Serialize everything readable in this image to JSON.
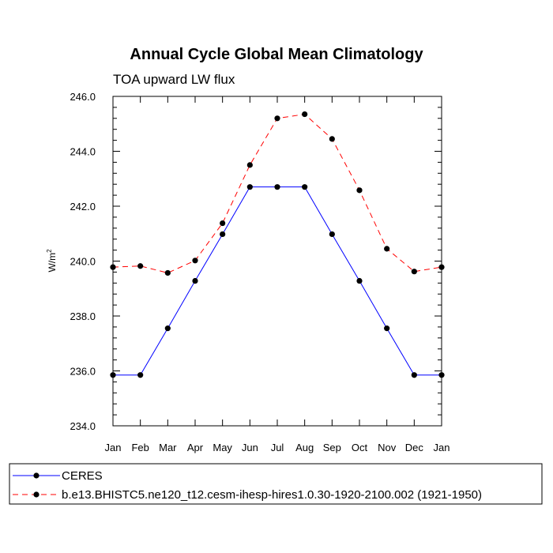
{
  "chart_data": {
    "type": "line",
    "title": "Annual Cycle Global Mean Climatology",
    "subtitle": "TOA upward LW flux",
    "xlabel": "",
    "ylabel": "W/m",
    "ylabel_superscript": "2",
    "categories": [
      "Jan",
      "Feb",
      "Mar",
      "Apr",
      "May",
      "Jun",
      "Jul",
      "Aug",
      "Sep",
      "Oct",
      "Nov",
      "Dec",
      "Jan"
    ],
    "ylim": [
      234.0,
      246.0
    ],
    "yticks": [
      234.0,
      236.0,
      238.0,
      240.0,
      242.0,
      244.0,
      246.0
    ],
    "ytick_labels": [
      "234.0",
      "236.0",
      "238.0",
      "240.0",
      "242.0",
      "244.0",
      "246.0"
    ],
    "series": [
      {
        "name": "CERES",
        "color": "#0000ff",
        "dash": "solid",
        "values": [
          235.85,
          235.85,
          237.55,
          239.28,
          240.98,
          242.7,
          242.7,
          242.7,
          240.98,
          239.28,
          237.55,
          235.85,
          235.85
        ]
      },
      {
        "name": "b.e13.BHISTC5.ne120_t12.cesm-ihesp-hires1.0.30-1920-2100.002 (1921-1950)",
        "color": "#ff0000",
        "dash": "dashed",
        "values": [
          239.78,
          239.82,
          239.57,
          240.02,
          241.38,
          243.5,
          245.2,
          245.35,
          244.45,
          242.58,
          240.45,
          239.62,
          239.78
        ]
      }
    ],
    "legend_position": "bottom"
  }
}
